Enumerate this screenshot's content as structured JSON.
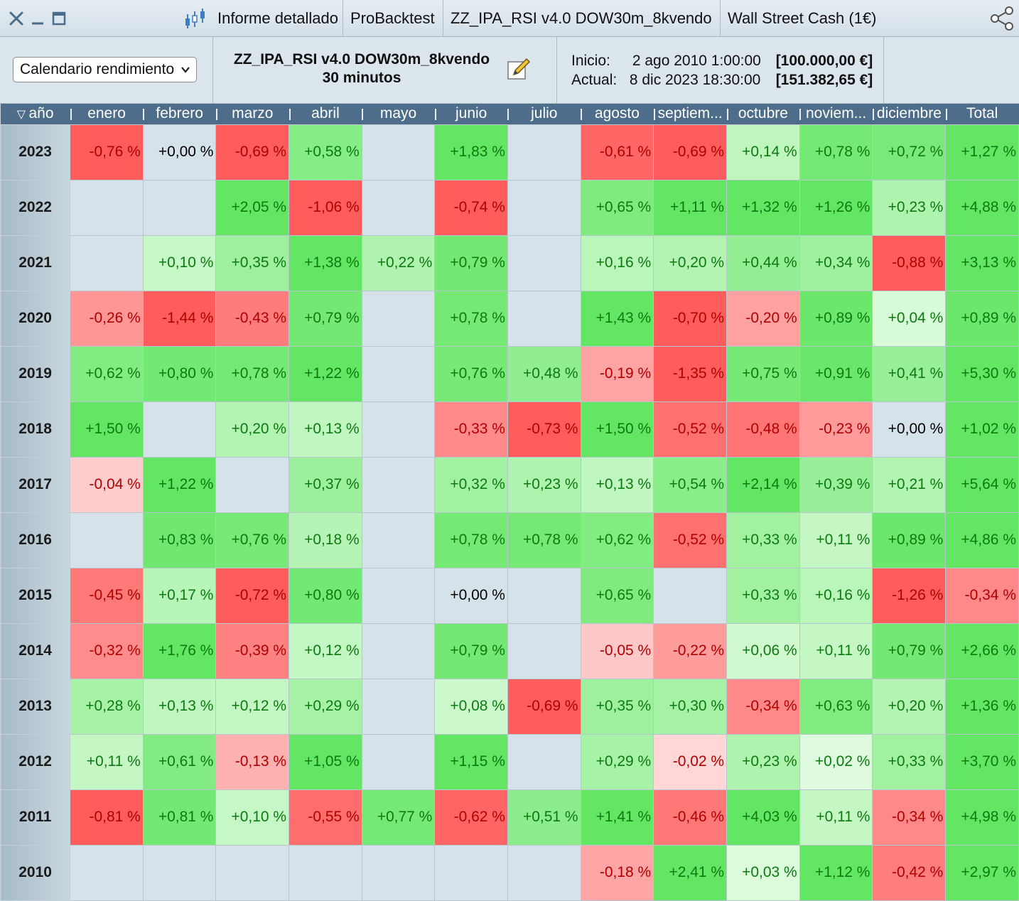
{
  "titlebar": {
    "tabs": [
      "Informe detallado",
      "ProBacktest",
      "ZZ_IPA_RSI v4.0 DOW30m_8kvendo",
      "Wall Street Cash (1€)"
    ]
  },
  "toolbar": {
    "view_select": "Calendario rendimiento",
    "strategy_name": "ZZ_IPA_RSI v4.0 DOW30m_8kvendo",
    "timeframe": "30 minutos",
    "start_label": "Inicio:",
    "start_date": "2 ago 2010 1:00:00",
    "start_value": "[100.000,00 €]",
    "current_label": "Actual:",
    "current_date": "8 dic 2023 18:30:00",
    "current_value": "[151.382,65 €]"
  },
  "colors": {
    "header_bg": "#4d6d8a",
    "empty_cell": "#d5e2ea",
    "positive_text": "#0d7a10",
    "negative_text": "#b00000"
  },
  "table": {
    "columns": [
      "año",
      "enero",
      "febrero",
      "marzo",
      "abril",
      "mayo",
      "junio",
      "julio",
      "agosto",
      "septiem...",
      "octubre",
      "noviem...",
      "diciembre",
      "Total"
    ],
    "rows": [
      {
        "year": "2023",
        "cells": [
          "-0,76 %",
          "+0,00 %",
          "-0,69 %",
          "+0,58 %",
          "",
          "+1,83 %",
          "",
          "-0,61 %",
          "-0,69 %",
          "+0,14 %",
          "+0,78 %",
          "+0,72 %",
          "+1,27 %"
        ]
      },
      {
        "year": "2022",
        "cells": [
          "",
          "",
          "+2,05 %",
          "-1,06 %",
          "",
          "-0,74 %",
          "",
          "+0,65 %",
          "+1,11 %",
          "+1,32 %",
          "+1,26 %",
          "+0,23 %",
          "+4,88 %"
        ]
      },
      {
        "year": "2021",
        "cells": [
          "",
          "+0,10 %",
          "+0,35 %",
          "+1,38 %",
          "+0,22 %",
          "+0,79 %",
          "",
          "+0,16 %",
          "+0,20 %",
          "+0,44 %",
          "+0,34 %",
          "-0,88 %",
          "+3,13 %"
        ]
      },
      {
        "year": "2020",
        "cells": [
          "-0,26 %",
          "-1,44 %",
          "-0,43 %",
          "+0,79 %",
          "",
          "+0,78 %",
          "",
          "+1,43 %",
          "-0,70 %",
          "-0,20 %",
          "+0,89 %",
          "+0,04 %",
          "+0,89 %"
        ]
      },
      {
        "year": "2019",
        "cells": [
          "+0,62 %",
          "+0,80 %",
          "+0,78 %",
          "+1,22 %",
          "",
          "+0,76 %",
          "+0,48 %",
          "-0,19 %",
          "-1,35 %",
          "+0,75 %",
          "+0,91 %",
          "+0,41 %",
          "+5,30 %"
        ]
      },
      {
        "year": "2018",
        "cells": [
          "+1,50 %",
          "",
          "+0,20 %",
          "+0,13 %",
          "",
          "-0,33 %",
          "-0,73 %",
          "+1,50 %",
          "-0,52 %",
          "-0,48 %",
          "-0,23 %",
          "+0,00 %",
          "+1,02 %"
        ]
      },
      {
        "year": "2017",
        "cells": [
          "-0,04 %",
          "+1,22 %",
          "",
          "+0,37 %",
          "",
          "+0,32 %",
          "+0,23 %",
          "+0,13 %",
          "+0,54 %",
          "+2,14 %",
          "+0,39 %",
          "+0,21 %",
          "+5,64 %"
        ]
      },
      {
        "year": "2016",
        "cells": [
          "",
          "+0,83 %",
          "+0,76 %",
          "+0,18 %",
          "",
          "+0,78 %",
          "+0,78 %",
          "+0,62 %",
          "-0,52 %",
          "+0,33 %",
          "+0,11 %",
          "+0,89 %",
          "+4,86 %"
        ]
      },
      {
        "year": "2015",
        "cells": [
          "-0,45 %",
          "+0,17 %",
          "-0,72 %",
          "+0,80 %",
          "",
          "+0,00 %",
          "",
          "+0,65 %",
          "",
          "+0,33 %",
          "+0,16 %",
          "-1,26 %",
          "-0,34 %"
        ]
      },
      {
        "year": "2014",
        "cells": [
          "-0,32 %",
          "+1,76 %",
          "-0,39 %",
          "+0,12 %",
          "",
          "+0,79 %",
          "",
          "-0,05 %",
          "-0,22 %",
          "+0,06 %",
          "+0,11 %",
          "+0,79 %",
          "+2,66 %"
        ]
      },
      {
        "year": "2013",
        "cells": [
          "+0,28 %",
          "+0,13 %",
          "+0,12 %",
          "+0,29 %",
          "",
          "+0,08 %",
          "-0,69 %",
          "+0,35 %",
          "+0,30 %",
          "-0,34 %",
          "+0,63 %",
          "+0,20 %",
          "+1,36 %"
        ]
      },
      {
        "year": "2012",
        "cells": [
          "+0,11 %",
          "+0,61 %",
          "-0,13 %",
          "+1,05 %",
          "",
          "+1,15 %",
          "",
          "+0,29 %",
          "-0,02 %",
          "+0,23 %",
          "+0,02 %",
          "+0,33 %",
          "+3,70 %"
        ]
      },
      {
        "year": "2011",
        "cells": [
          "-0,81 %",
          "+0,81 %",
          "+0,10 %",
          "-0,55 %",
          "+0,77 %",
          "-0,62 %",
          "+0,51 %",
          "+1,41 %",
          "-0,46 %",
          "+4,03 %",
          "+0,11 %",
          "-0,34 %",
          "+4,98 %"
        ]
      },
      {
        "year": "2010",
        "cells": [
          "",
          "",
          "",
          "",
          "",
          "",
          "",
          "-0,18 %",
          "+2,41 %",
          "+0,03 %",
          "+1,12 %",
          "-0,42 %",
          "+2,97 %"
        ]
      }
    ]
  }
}
